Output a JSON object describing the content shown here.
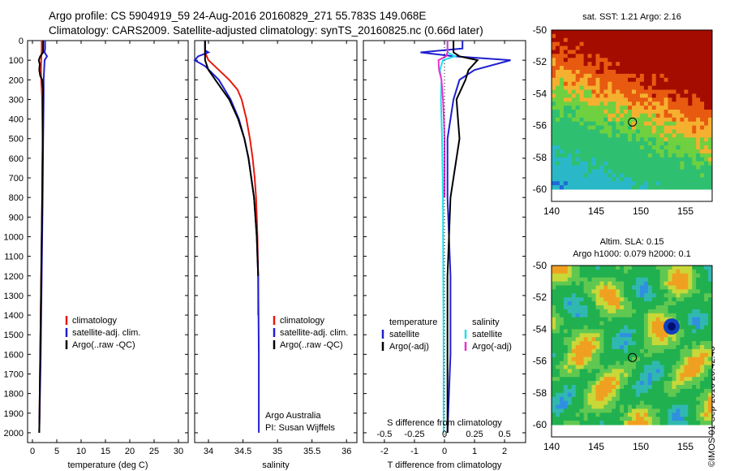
{
  "header": {
    "line1": "Argo profile: CS 5904919_59 24-Aug-2016 20160829_271 55.783S 149.068E",
    "line2": "Climatology: CARS2009. Satellite-adjusted climatology: synTS_20160825.nc (0.66d later)"
  },
  "colors": {
    "climatology": "#e8180e",
    "satellite": "#1f1fd0",
    "argo": "#000000",
    "sat_salinity": "#20e0e8",
    "argo_salinity": "#ee30d0"
  },
  "chart_data": [
    {
      "type": "line",
      "xlabel": "temperature (deg C)",
      "ylabel": "",
      "xlim": [
        -1,
        32
      ],
      "ylim": [
        2050,
        0
      ],
      "x_ticks": [
        0,
        5,
        10,
        15,
        20,
        25,
        30
      ],
      "y_ticks": [
        0,
        100,
        200,
        300,
        400,
        500,
        600,
        700,
        800,
        900,
        1000,
        1100,
        1200,
        1300,
        1400,
        1500,
        1600,
        1700,
        1800,
        1900,
        2000
      ],
      "legend": {
        "position": "lower-right",
        "entries": [
          "climatology",
          "satellite-adj. clim.",
          "Argo(..raw -QC)"
        ]
      },
      "series": [
        {
          "name": "climatology",
          "color": "#e8180e",
          "depth": [
            0,
            50,
            100,
            150,
            200,
            300,
            500,
            800,
            1200,
            1600,
            2000
          ],
          "values": [
            1.9,
            1.9,
            1.8,
            1.75,
            1.8,
            2.0,
            2.1,
            2.0,
            1.8,
            1.6,
            1.4
          ]
        },
        {
          "name": "satellite-adj. clim.",
          "color": "#1f1fd0",
          "depth": [
            0,
            40,
            60,
            80,
            100,
            150,
            200,
            300,
            500,
            800,
            1200,
            1600,
            2000
          ],
          "values": [
            2.6,
            2.6,
            2.5,
            3.0,
            2.5,
            2.4,
            2.3,
            2.3,
            2.2,
            2.1,
            1.9,
            1.7,
            1.4
          ]
        },
        {
          "name": "Argo(..raw -QC)",
          "color": "#000000",
          "depth": [
            0,
            60,
            80,
            100,
            120,
            150,
            180,
            200,
            250,
            300,
            500,
            800,
            1200,
            1600,
            2000
          ],
          "values": [
            2.2,
            2.2,
            1.6,
            1.3,
            1.5,
            1.4,
            1.6,
            2.0,
            2.2,
            2.1,
            2.1,
            2.0,
            1.8,
            1.6,
            1.4
          ]
        }
      ]
    },
    {
      "type": "line",
      "xlabel": "salinity",
      "xlim": [
        33.8,
        36.15
      ],
      "ylim": [
        2050,
        0
      ],
      "x_ticks": [
        34,
        34.5,
        35,
        35.5,
        36
      ],
      "legend": {
        "position": "lower-right",
        "entries": [
          "climatology",
          "satellite-adj. clim.",
          "Argo(..raw -QC)"
        ]
      },
      "annotation": [
        "Argo Australia",
        "PI: Susan Wijffels"
      ],
      "series": [
        {
          "name": "climatology",
          "color": "#e8180e",
          "depth": [
            0,
            60,
            100,
            150,
            200,
            250,
            300,
            400,
            500,
            600,
            700,
            800,
            900,
            1000,
            1200,
            1400
          ],
          "values": [
            33.95,
            33.95,
            34.0,
            34.15,
            34.3,
            34.42,
            34.48,
            34.55,
            34.6,
            34.64,
            34.67,
            34.69,
            34.7,
            34.71,
            34.72,
            34.72
          ]
        },
        {
          "name": "satellite-adj. clim.",
          "color": "#1f1fd0",
          "depth": [
            0,
            50,
            60,
            80,
            100,
            130,
            200,
            300,
            400,
            500,
            600,
            700,
            800,
            900,
            1000,
            1200,
            1600,
            2000
          ],
          "values": [
            33.95,
            33.95,
            34.0,
            33.85,
            33.8,
            33.95,
            34.15,
            34.32,
            34.44,
            34.52,
            34.58,
            34.62,
            34.66,
            34.68,
            34.7,
            34.72,
            34.73,
            34.73
          ]
        },
        {
          "name": "Argo(..raw -QC)",
          "color": "#000000",
          "depth": [
            0,
            50,
            100,
            150,
            200,
            250,
            300,
            400,
            500,
            600,
            700,
            800,
            900,
            1000,
            1100,
            1200
          ],
          "values": [
            33.95,
            33.95,
            33.95,
            34.0,
            34.1,
            34.2,
            34.3,
            34.43,
            34.52,
            34.58,
            34.62,
            34.66,
            34.68,
            34.7,
            34.71,
            34.72
          ]
        }
      ]
    },
    {
      "type": "line",
      "xlabel": "T difference from climatology",
      "top_label": "S difference from climatology",
      "xlim": [
        -2.7,
        2.7
      ],
      "x_ticks": [
        -2,
        -1,
        0,
        1,
        2
      ],
      "x_ticks_top": [
        -0.5,
        -0.25,
        0,
        0.25,
        0.5
      ],
      "legend": {
        "position": "lower",
        "groups": [
          {
            "title": "temperature",
            "entries": [
              "satellite",
              "Argo(-adj)"
            ]
          },
          {
            "title": "salinity",
            "entries": [
              "satellite",
              "Argo(-adj)"
            ]
          }
        ]
      },
      "series": [
        {
          "name": "temperature satellite",
          "color": "#1f1fd0",
          "depth": [
            0,
            40,
            60,
            80,
            100,
            150,
            200,
            300,
            500,
            800,
            1200,
            1600,
            2000
          ],
          "values": [
            0.6,
            0.6,
            -0.8,
            0.3,
            2.2,
            1.0,
            0.5,
            0.3,
            0.1,
            0.1,
            0.2,
            0.2,
            0.1
          ]
        },
        {
          "name": "temperature Argo(-adj)",
          "color": "#000000",
          "depth": [
            0,
            60,
            80,
            100,
            150,
            200,
            300,
            500,
            800,
            1200,
            1600,
            2000
          ],
          "values": [
            0.3,
            0.3,
            0.5,
            1.1,
            0.8,
            0.7,
            0.4,
            0.5,
            0.2,
            0.1,
            0.1,
            0.1
          ]
        },
        {
          "name": "salinity satellite",
          "color": "#20e0e8",
          "depth": [
            0,
            60,
            80,
            100,
            150,
            200,
            300,
            500,
            800,
            1200,
            1600,
            2000
          ],
          "values": [
            0.1,
            0.1,
            0.35,
            -0.05,
            -0.15,
            -0.1,
            -0.12,
            -0.08,
            -0.05,
            -0.04,
            -0.03,
            -0.03
          ]
        },
        {
          "name": "salinity Argo(-adj)",
          "color": "#ee30d0",
          "depth": [
            0,
            60,
            80,
            100,
            150,
            200,
            300,
            400,
            500,
            800
          ],
          "values": [
            0.1,
            0.1,
            0.05,
            -0.2,
            -0.18,
            -0.1,
            -0.05,
            -0.02,
            0.0,
            0.0
          ]
        }
      ]
    }
  ],
  "maps": [
    {
      "title": "sat. SST: 1.21  Argo: 2.16",
      "x_ticks": [
        140,
        145,
        150,
        155
      ],
      "y_ticks": [
        -50,
        -52,
        -54,
        -56,
        -58,
        -60
      ]
    },
    {
      "title": "Altim. SLA: 0.15",
      "title2": "Argo h1000: 0.079 h2000: 0.1",
      "x_ticks": [
        140,
        145,
        150,
        155
      ],
      "y_ticks": [
        -50,
        -52,
        -54,
        -56,
        -58,
        -60
      ]
    }
  ],
  "credit": "©IMOS 01-Sep-2016 20:42:48"
}
